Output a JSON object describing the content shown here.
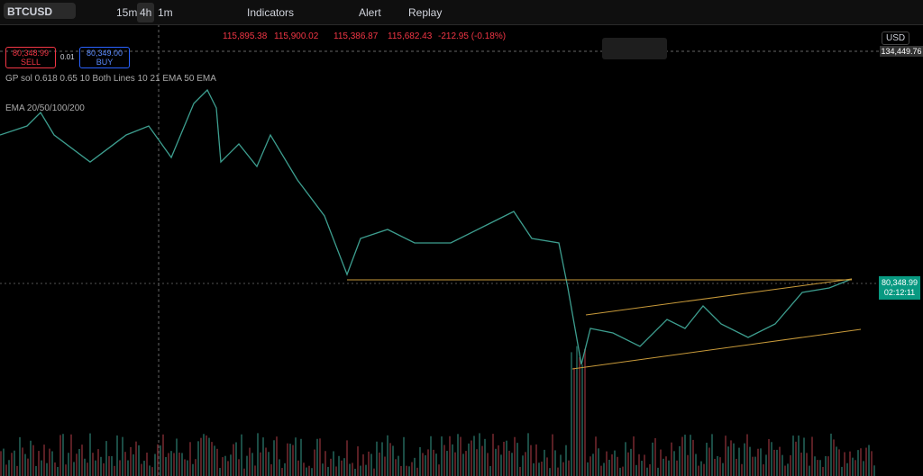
{
  "toolbar": {
    "symbol": "BTCUSD",
    "intervals": [
      "15m",
      "4h",
      "1m"
    ],
    "indicators": "Indicators",
    "alert": "Alert",
    "replay": "Replay"
  },
  "legend": {
    "ohlc": [
      "115,895.38",
      "115,900.02",
      "115,386.87",
      "115,682.43"
    ],
    "change": "-212.95 (-0.18%)"
  },
  "trade": {
    "sell_price": "80,348.99",
    "sell_label": "SELL",
    "quantity": "0.01",
    "buy_price": "80,349.00",
    "buy_label": "BUY"
  },
  "indicators": [
    "GP sol 0.618 0.65 10 Both Lines 10 21 EMA 50 EMA",
    "EMA 20/50/100/200"
  ],
  "price_scale": {
    "currency": "USD",
    "crosshair_price": "134,449.76",
    "last_price": "80,348.99",
    "countdown": "02:12:11"
  }
}
